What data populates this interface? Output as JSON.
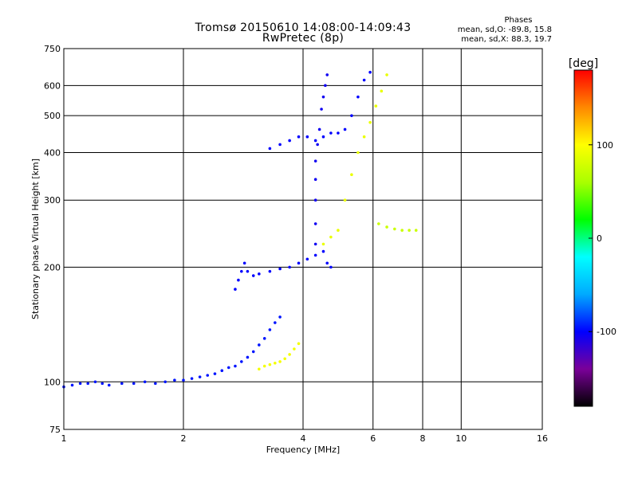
{
  "header": {
    "title_line1": "Tromsø 20150610 14:08:00-14:09:43",
    "title_line2": "RwPretec (8p)"
  },
  "phases_box": {
    "heading": "Phases",
    "o_line": "mean, sd,O: -89.8, 15.8",
    "x_line": "mean, sd,X:  88.3, 19.7"
  },
  "chart_data": {
    "type": "scatter",
    "xlabel": "Frequency [MHz]",
    "ylabel": "Stationary phase Virtual Height [km]",
    "x_scale": "log",
    "y_scale": "log",
    "xlim": [
      1,
      16
    ],
    "ylim": [
      75,
      750
    ],
    "x_ticks": [
      1,
      2,
      4,
      6,
      8,
      10,
      16
    ],
    "y_ticks": [
      75,
      100,
      200,
      300,
      400,
      500,
      600,
      750
    ],
    "grid": true,
    "colorbar": {
      "label": "[deg]",
      "min": -180,
      "max": 180,
      "ticks": [
        100,
        0,
        -100
      ],
      "colormap": [
        "#000000",
        "#7a0099",
        "#0000ff",
        "#00aaff",
        "#00ffff",
        "#00ff00",
        "#aaff00",
        "#ffff00",
        "#ff8800",
        "#ff0000"
      ]
    },
    "series": [
      {
        "trace": "low E-layer trace",
        "color_phase": -95,
        "points": [
          [
            1.0,
            97
          ],
          [
            1.05,
            98
          ],
          [
            1.1,
            99
          ],
          [
            1.15,
            99
          ],
          [
            1.2,
            100
          ],
          [
            1.25,
            99
          ],
          [
            1.3,
            98
          ],
          [
            1.4,
            99
          ],
          [
            1.5,
            99
          ],
          [
            1.6,
            100
          ],
          [
            1.7,
            99
          ],
          [
            1.8,
            100
          ],
          [
            1.9,
            101
          ],
          [
            2.0,
            101
          ],
          [
            2.1,
            102
          ],
          [
            2.2,
            103
          ],
          [
            2.3,
            104
          ],
          [
            2.4,
            105
          ],
          [
            2.5,
            107
          ],
          [
            2.6,
            109
          ],
          [
            2.7,
            110
          ],
          [
            2.8,
            113
          ],
          [
            2.9,
            116
          ],
          [
            3.0,
            120
          ],
          [
            3.1,
            125
          ],
          [
            3.2,
            130
          ],
          [
            3.3,
            137
          ],
          [
            3.4,
            143
          ],
          [
            3.5,
            148
          ]
        ]
      },
      {
        "trace": "low yellow segment",
        "color_phase": 95,
        "points": [
          [
            3.1,
            108
          ],
          [
            3.2,
            110
          ],
          [
            3.3,
            111
          ],
          [
            3.4,
            112
          ],
          [
            3.5,
            113
          ],
          [
            3.6,
            115
          ],
          [
            3.7,
            118
          ],
          [
            3.8,
            122
          ],
          [
            3.9,
            126
          ]
        ]
      },
      {
        "trace": "F-layer lower trace",
        "color_phase": -100,
        "points": [
          [
            2.7,
            175
          ],
          [
            2.75,
            185
          ],
          [
            2.8,
            195
          ],
          [
            2.85,
            205
          ],
          [
            2.9,
            195
          ],
          [
            3.0,
            190
          ],
          [
            3.1,
            192
          ],
          [
            3.3,
            195
          ],
          [
            3.5,
            198
          ],
          [
            3.7,
            200
          ],
          [
            3.9,
            205
          ],
          [
            4.1,
            210
          ],
          [
            4.3,
            215
          ],
          [
            4.5,
            220
          ],
          [
            4.6,
            205
          ],
          [
            4.7,
            200
          ]
        ]
      },
      {
        "trace": "F-layer vertical streak",
        "color_phase": -105,
        "points": [
          [
            4.3,
            230
          ],
          [
            4.3,
            260
          ],
          [
            4.3,
            300
          ],
          [
            4.3,
            340
          ],
          [
            4.3,
            380
          ],
          [
            4.35,
            420
          ],
          [
            4.4,
            460
          ],
          [
            4.45,
            520
          ],
          [
            4.5,
            560
          ],
          [
            4.55,
            600
          ],
          [
            4.6,
            640
          ]
        ]
      },
      {
        "trace": "F-layer upper trace",
        "color_phase": -100,
        "points": [
          [
            3.3,
            410
          ],
          [
            3.5,
            420
          ],
          [
            3.7,
            430
          ],
          [
            3.9,
            440
          ],
          [
            4.1,
            440
          ],
          [
            4.3,
            430
          ],
          [
            4.5,
            440
          ],
          [
            4.7,
            450
          ],
          [
            4.9,
            450
          ],
          [
            5.1,
            460
          ],
          [
            5.3,
            500
          ],
          [
            5.5,
            560
          ],
          [
            5.7,
            620
          ],
          [
            5.9,
            650
          ]
        ]
      },
      {
        "trace": "X-mode trace",
        "color_phase": 90,
        "points": [
          [
            4.5,
            230
          ],
          [
            4.7,
            240
          ],
          [
            4.9,
            250
          ],
          [
            5.1,
            300
          ],
          [
            5.3,
            350
          ],
          [
            5.5,
            400
          ],
          [
            5.7,
            440
          ],
          [
            5.9,
            480
          ],
          [
            6.1,
            530
          ],
          [
            6.3,
            580
          ],
          [
            6.5,
            640
          ]
        ]
      },
      {
        "trace": "mid segment",
        "color_phase": 75,
        "points": [
          [
            6.2,
            260
          ],
          [
            6.5,
            255
          ],
          [
            6.8,
            252
          ],
          [
            7.1,
            250
          ],
          [
            7.4,
            250
          ],
          [
            7.7,
            250
          ]
        ]
      }
    ]
  }
}
